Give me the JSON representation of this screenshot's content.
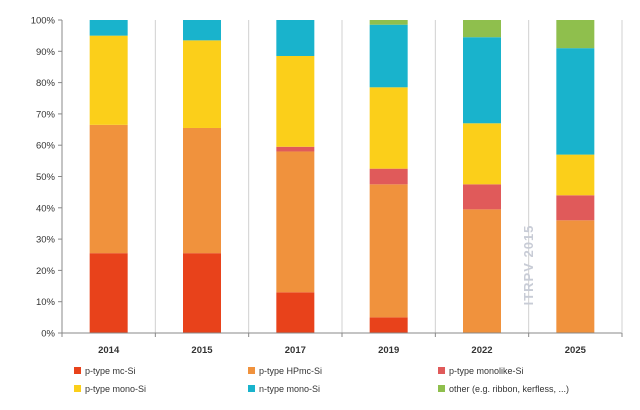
{
  "chart_data": {
    "type": "bar",
    "stacked": true,
    "categories": [
      "2014",
      "2015",
      "2017",
      "2019",
      "2022",
      "2025"
    ],
    "ylim": [
      0,
      100
    ],
    "y_ticks": [
      "0%",
      "10%",
      "20%",
      "30%",
      "40%",
      "50%",
      "60%",
      "70%",
      "80%",
      "90%",
      "100%"
    ],
    "grid": "vertical lines between categories",
    "legend_position": "bottom",
    "watermark": "ITRPV 2015",
    "series": [
      {
        "name": "p-type mc-Si",
        "color": "#e8421b",
        "values": [
          25.5,
          25.5,
          13,
          5,
          0,
          0
        ]
      },
      {
        "name": "p-type HPmc-Si",
        "color": "#f0923d",
        "values": [
          41,
          40,
          45,
          42.5,
          39.5,
          36
        ]
      },
      {
        "name": "p-type monolike-Si",
        "color": "#e05a5a",
        "values": [
          0,
          0,
          1.5,
          5,
          8,
          8
        ]
      },
      {
        "name": "p-type mono-Si",
        "color": "#fbcf1a",
        "values": [
          28.5,
          28,
          29,
          26,
          19.5,
          13
        ]
      },
      {
        "name": "n-type mono-Si",
        "color": "#19b3cc",
        "values": [
          5,
          6.5,
          11.5,
          20,
          27.5,
          34
        ]
      },
      {
        "name": "other (e.g. ribbon, kerfless, ...)",
        "color": "#8fbf4d",
        "values": [
          0,
          0,
          0,
          1.5,
          5.5,
          9
        ]
      }
    ]
  }
}
